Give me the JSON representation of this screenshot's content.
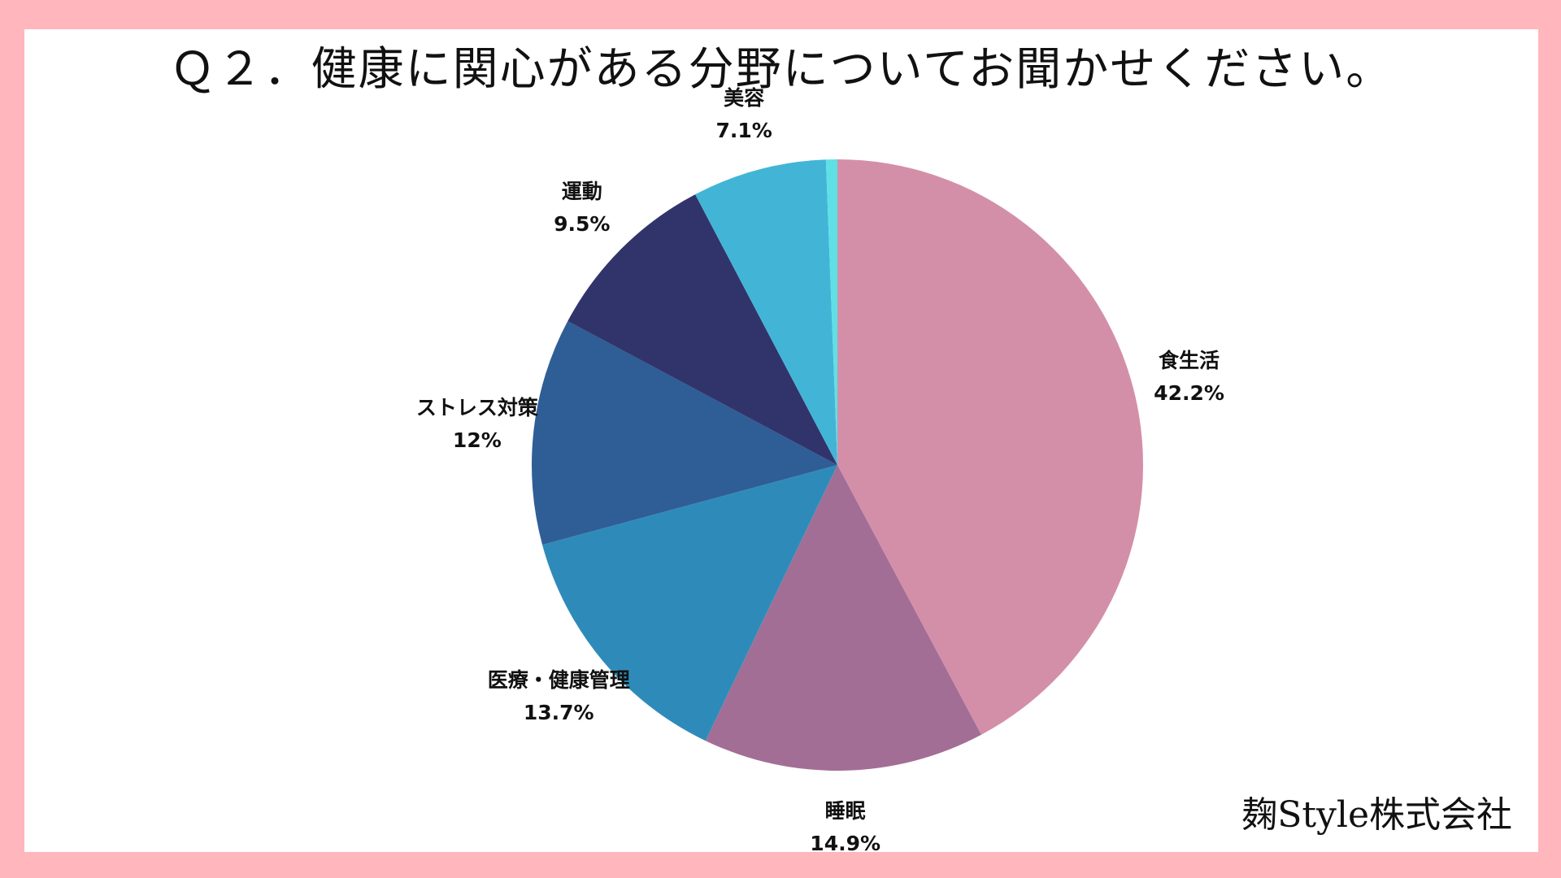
{
  "page": {
    "company": "麹Style株式会社"
  },
  "chart_data": {
    "type": "pie",
    "title": "Ｑ２．健康に関心がある分野についてお聞かせください。",
    "legend": "none",
    "slices": [
      {
        "label": "食生活",
        "value": 42.2,
        "value_label": "42.2%",
        "color": "#d48fa8"
      },
      {
        "label": "睡眠",
        "value": 14.9,
        "value_label": "14.9%",
        "color": "#a36e95"
      },
      {
        "label": "医療・健康管理",
        "value": 13.7,
        "value_label": "13.7%",
        "color": "#2e8bb9"
      },
      {
        "label": "ストレス対策",
        "value": 12.0,
        "value_label": "12%",
        "color": "#2e5e95"
      },
      {
        "label": "運動",
        "value": 9.5,
        "value_label": "9.5%",
        "color": "#31346b"
      },
      {
        "label": "美容",
        "value": 7.1,
        "value_label": "7.1%",
        "color": "#42b5d6"
      },
      {
        "label": "",
        "value": 0.6,
        "value_label": "",
        "color": "#5fe0e6"
      }
    ]
  }
}
